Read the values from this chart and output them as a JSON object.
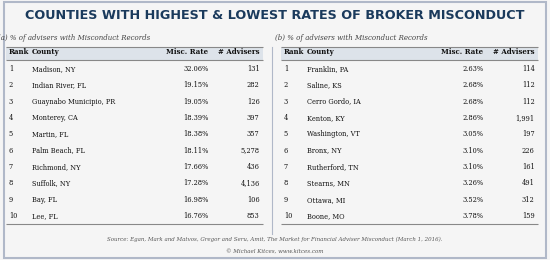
{
  "title": "COUNTIES WITH HIGHEST & LOWEST RATES OF BROKER MISCONDUCT",
  "subtitle_a": "(a) % of advisers with Misconduct Records",
  "subtitle_b": "(b) % of advisers with Misconduct Records",
  "left_headers": [
    "Rank",
    "County",
    "Misc. Rate",
    "# Advisers"
  ],
  "right_headers": [
    "Rank",
    "County",
    "Misc. Rate",
    "# Advisers"
  ],
  "left_data": [
    [
      "1",
      "Madison, NY",
      "32.06%",
      "131"
    ],
    [
      "2",
      "Indian River, FL",
      "19.15%",
      "282"
    ],
    [
      "3",
      "Guaynabo Municipio, PR",
      "19.05%",
      "126"
    ],
    [
      "4",
      "Monterey, CA",
      "18.39%",
      "397"
    ],
    [
      "5",
      "Martin, FL",
      "18.38%",
      "357"
    ],
    [
      "6",
      "Palm Beach, FL",
      "18.11%",
      "5,278"
    ],
    [
      "7",
      "Richmond, NY",
      "17.66%",
      "436"
    ],
    [
      "8",
      "Suffolk, NY",
      "17.28%",
      "4,136"
    ],
    [
      "9",
      "Bay, FL",
      "16.98%",
      "106"
    ],
    [
      "10",
      "Lee, FL",
      "16.76%",
      "853"
    ]
  ],
  "right_data": [
    [
      "1",
      "Franklin, PA",
      "2.63%",
      "114"
    ],
    [
      "2",
      "Saline, KS",
      "2.68%",
      "112"
    ],
    [
      "3",
      "Cerro Gordo, IA",
      "2.68%",
      "112"
    ],
    [
      "4",
      "Kenton, KY",
      "2.86%",
      "1,991"
    ],
    [
      "5",
      "Washington, VT",
      "3.05%",
      "197"
    ],
    [
      "6",
      "Bronx, NY",
      "3.10%",
      "226"
    ],
    [
      "7",
      "Rutherford, TN",
      "3.10%",
      "161"
    ],
    [
      "8",
      "Stearns, MN",
      "3.26%",
      "491"
    ],
    [
      "9",
      "Ottawa, MI",
      "3.52%",
      "312"
    ],
    [
      "10",
      "Boone, MO",
      "3.78%",
      "159"
    ]
  ],
  "source_text": "Source: Egan, Mark and Matvos, Gregor and Seru, Amit, The Market for Financial Adviser Misconduct (March 1, 2016).",
  "copyright_text": "© Michael Kitces, www.kitces.com",
  "bg_color": "#f5f5f5",
  "border_color": "#b0b8c8",
  "title_color": "#1a3a5c",
  "header_bg": "#dde3ea",
  "text_color": "#111111",
  "line_color": "#888888"
}
